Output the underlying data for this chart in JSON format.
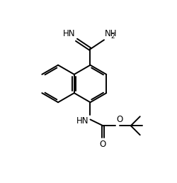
{
  "bg_color": "#ffffff",
  "line_color": "#000000",
  "line_width": 1.4,
  "font_size": 8.5,
  "font_size_sub": 6.5,
  "figsize": [
    2.5,
    2.58
  ],
  "dpi": 100,
  "xlim": [
    0,
    10
  ],
  "ylim": [
    0,
    10.32
  ]
}
